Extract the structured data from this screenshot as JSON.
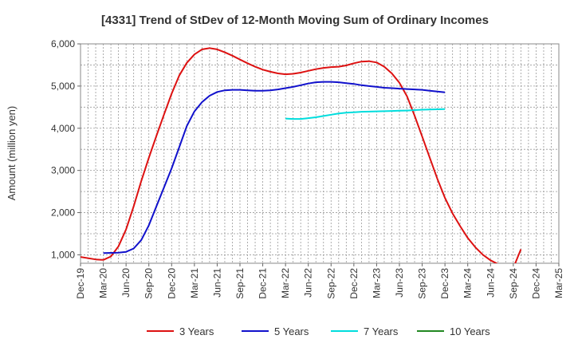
{
  "chart_data": {
    "type": "line",
    "title": "[4331]  Trend of StDev of 12-Month Moving Sum of Ordinary Incomes",
    "xlabel": "",
    "ylabel": "Amount (million yen)",
    "ylim": [
      800,
      6000
    ],
    "yticks": [
      1000,
      2000,
      3000,
      4000,
      5000,
      6000
    ],
    "ytick_labels": [
      "1,000",
      "2,000",
      "3,000",
      "4,000",
      "5,000",
      "6,000"
    ],
    "xticks": [
      "Dec-19",
      "Mar-20",
      "Jun-20",
      "Sep-20",
      "Dec-20",
      "Mar-21",
      "Jun-21",
      "Sep-21",
      "Dec-21",
      "Mar-22",
      "Jun-22",
      "Sep-22",
      "Dec-22",
      "Mar-23",
      "Jun-23",
      "Sep-23",
      "Dec-23",
      "Mar-24",
      "Jun-24",
      "Sep-24",
      "Dec-24",
      "Mar-25"
    ],
    "grid": true,
    "legend_position": "bottom",
    "series": [
      {
        "name": "3 Years",
        "color": "#dd1111",
        "points": [
          [
            0,
            950
          ],
          [
            2,
            890
          ],
          [
            3,
            880
          ],
          [
            4,
            960
          ],
          [
            5,
            1200
          ],
          [
            6,
            1600
          ],
          [
            7,
            2150
          ],
          [
            8,
            2750
          ],
          [
            9,
            3300
          ],
          [
            10,
            3820
          ],
          [
            11,
            4330
          ],
          [
            12,
            4820
          ],
          [
            13,
            5250
          ],
          [
            14,
            5550
          ],
          [
            15,
            5750
          ],
          [
            16,
            5870
          ],
          [
            17,
            5900
          ],
          [
            18,
            5870
          ],
          [
            19,
            5800
          ],
          [
            20,
            5720
          ],
          [
            21,
            5630
          ],
          [
            22,
            5540
          ],
          [
            23,
            5460
          ],
          [
            24,
            5390
          ],
          [
            25,
            5340
          ],
          [
            26,
            5300
          ],
          [
            27,
            5280
          ],
          [
            28,
            5290
          ],
          [
            29,
            5320
          ],
          [
            30,
            5360
          ],
          [
            31,
            5400
          ],
          [
            32,
            5430
          ],
          [
            33,
            5450
          ],
          [
            34,
            5460
          ],
          [
            35,
            5490
          ],
          [
            36,
            5540
          ],
          [
            37,
            5580
          ],
          [
            38,
            5590
          ],
          [
            39,
            5560
          ],
          [
            40,
            5460
          ],
          [
            41,
            5300
          ],
          [
            42,
            5080
          ],
          [
            43,
            4760
          ],
          [
            44,
            4300
          ],
          [
            45,
            3800
          ],
          [
            46,
            3300
          ],
          [
            47,
            2800
          ],
          [
            48,
            2350
          ],
          [
            49,
            1980
          ],
          [
            50,
            1680
          ],
          [
            51,
            1400
          ],
          [
            52,
            1180
          ],
          [
            53,
            1000
          ],
          [
            54,
            870
          ],
          [
            55,
            780
          ],
          [
            56,
            720
          ],
          [
            57,
            690
          ],
          [
            58,
            1130
          ]
        ]
      },
      {
        "name": "5 Years",
        "color": "#1111cc",
        "points": [
          [
            3,
            1040
          ],
          [
            5,
            1050
          ],
          [
            6,
            1070
          ],
          [
            7,
            1150
          ],
          [
            8,
            1350
          ],
          [
            9,
            1700
          ],
          [
            10,
            2150
          ],
          [
            11,
            2600
          ],
          [
            12,
            3050
          ],
          [
            13,
            3550
          ],
          [
            14,
            4050
          ],
          [
            15,
            4400
          ],
          [
            16,
            4620
          ],
          [
            17,
            4770
          ],
          [
            18,
            4860
          ],
          [
            19,
            4900
          ],
          [
            20,
            4910
          ],
          [
            21,
            4910
          ],
          [
            22,
            4900
          ],
          [
            23,
            4890
          ],
          [
            24,
            4890
          ],
          [
            25,
            4900
          ],
          [
            26,
            4920
          ],
          [
            27,
            4950
          ],
          [
            28,
            4980
          ],
          [
            29,
            5020
          ],
          [
            30,
            5060
          ],
          [
            31,
            5090
          ],
          [
            32,
            5100
          ],
          [
            33,
            5100
          ],
          [
            34,
            5090
          ],
          [
            35,
            5070
          ],
          [
            36,
            5050
          ],
          [
            37,
            5020
          ],
          [
            38,
            5000
          ],
          [
            39,
            4980
          ],
          [
            40,
            4960
          ],
          [
            41,
            4950
          ],
          [
            42,
            4940
          ],
          [
            43,
            4930
          ],
          [
            44,
            4920
          ],
          [
            45,
            4910
          ],
          [
            46,
            4890
          ],
          [
            47,
            4870
          ],
          [
            48,
            4850
          ]
        ]
      },
      {
        "name": "7 Years",
        "color": "#00dddd",
        "points": [
          [
            27,
            4230
          ],
          [
            28,
            4220
          ],
          [
            29,
            4220
          ],
          [
            30,
            4240
          ],
          [
            31,
            4260
          ],
          [
            32,
            4290
          ],
          [
            33,
            4320
          ],
          [
            34,
            4350
          ],
          [
            35,
            4370
          ],
          [
            36,
            4380
          ],
          [
            37,
            4390
          ],
          [
            38,
            4395
          ],
          [
            39,
            4400
          ],
          [
            40,
            4405
          ],
          [
            41,
            4410
          ],
          [
            42,
            4415
          ],
          [
            43,
            4420
          ],
          [
            44,
            4430
          ],
          [
            45,
            4440
          ],
          [
            46,
            4445
          ],
          [
            47,
            4450
          ],
          [
            48,
            4455
          ]
        ]
      },
      {
        "name": "10 Years",
        "color": "#228822",
        "points": []
      }
    ]
  }
}
